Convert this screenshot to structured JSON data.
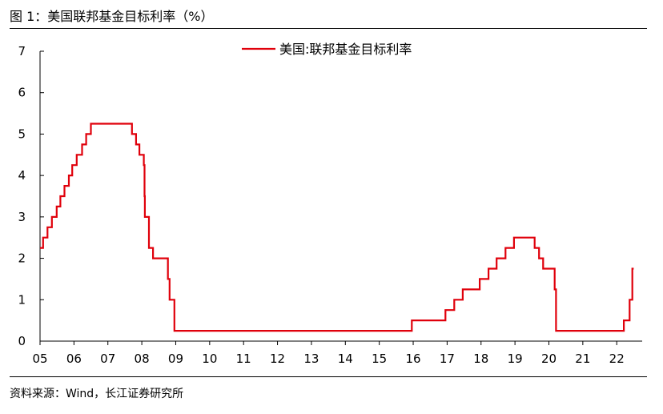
{
  "figure": {
    "title": "图 1：美国联邦基金目标利率（%）",
    "source": "资料来源：Wind，长江证券研究所"
  },
  "chart_data": {
    "type": "line",
    "title": "",
    "xlabel": "",
    "ylabel": "",
    "xlim": [
      2005.0,
      2022.75
    ],
    "ylim": [
      0,
      7
    ],
    "yticks": [
      0,
      1,
      2,
      3,
      4,
      5,
      6,
      7
    ],
    "xticks": [
      {
        "value": 2005,
        "label": "05"
      },
      {
        "value": 2006,
        "label": "06"
      },
      {
        "value": 2007,
        "label": "07"
      },
      {
        "value": 2008,
        "label": "08"
      },
      {
        "value": 2009,
        "label": "09"
      },
      {
        "value": 2010,
        "label": "10"
      },
      {
        "value": 2011,
        "label": "11"
      },
      {
        "value": 2012,
        "label": "12"
      },
      {
        "value": 2013,
        "label": "13"
      },
      {
        "value": 2014,
        "label": "14"
      },
      {
        "value": 2015,
        "label": "15"
      },
      {
        "value": 2016,
        "label": "16"
      },
      {
        "value": 2017,
        "label": "17"
      },
      {
        "value": 2018,
        "label": "18"
      },
      {
        "value": 2019,
        "label": "19"
      },
      {
        "value": 2020,
        "label": "20"
      },
      {
        "value": 2021,
        "label": "21"
      },
      {
        "value": 2022,
        "label": "22"
      }
    ],
    "grid": false,
    "legend": "top-center",
    "series": [
      {
        "name": "美国:联邦基金目标利率",
        "color": "#e0000b",
        "step": true,
        "points": [
          [
            2005.0,
            2.25
          ],
          [
            2005.09,
            2.5
          ],
          [
            2005.22,
            2.75
          ],
          [
            2005.35,
            3.0
          ],
          [
            2005.49,
            3.25
          ],
          [
            2005.6,
            3.5
          ],
          [
            2005.72,
            3.75
          ],
          [
            2005.85,
            4.0
          ],
          [
            2005.95,
            4.25
          ],
          [
            2006.08,
            4.5
          ],
          [
            2006.24,
            4.75
          ],
          [
            2006.36,
            5.0
          ],
          [
            2006.5,
            5.25
          ],
          [
            2007.71,
            5.0
          ],
          [
            2007.83,
            4.75
          ],
          [
            2007.93,
            4.5
          ],
          [
            2008.06,
            4.25
          ],
          [
            2008.08,
            3.5
          ],
          [
            2008.09,
            3.0
          ],
          [
            2008.21,
            2.25
          ],
          [
            2008.33,
            2.0
          ],
          [
            2008.77,
            1.5
          ],
          [
            2008.82,
            1.0
          ],
          [
            2008.96,
            0.25
          ],
          [
            2015.96,
            0.5
          ],
          [
            2016.95,
            0.75
          ],
          [
            2017.21,
            1.0
          ],
          [
            2017.46,
            1.25
          ],
          [
            2017.96,
            1.5
          ],
          [
            2018.22,
            1.75
          ],
          [
            2018.46,
            2.0
          ],
          [
            2018.72,
            2.25
          ],
          [
            2018.97,
            2.5
          ],
          [
            2019.58,
            2.25
          ],
          [
            2019.71,
            2.0
          ],
          [
            2019.83,
            1.75
          ],
          [
            2020.17,
            1.25
          ],
          [
            2020.21,
            0.25
          ],
          [
            2022.21,
            0.5
          ],
          [
            2022.38,
            1.0
          ],
          [
            2022.46,
            1.75
          ],
          [
            2022.5,
            1.75
          ]
        ]
      }
    ]
  }
}
